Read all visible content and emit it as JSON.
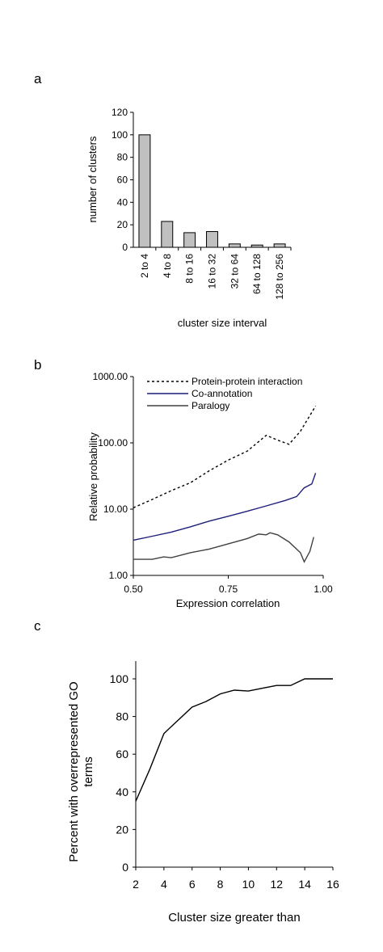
{
  "panels": {
    "a": "a",
    "b": "b",
    "c": "c"
  },
  "chart_data": [
    {
      "type": "bar",
      "panel": "a",
      "categories": [
        "2 to 4",
        "4 to 8",
        "8 to 16",
        "16 to 32",
        "32 to 64",
        "64 to 128",
        "128 to 256"
      ],
      "values": [
        100,
        23,
        13,
        14,
        3,
        2,
        3
      ],
      "yticks": [
        "0",
        "20",
        "40",
        "60",
        "80",
        "100",
        "120"
      ],
      "ylim": [
        0,
        120
      ],
      "xlabel": "cluster size interval",
      "ylabel": "number of clusters",
      "bar_color": "#c0c0c0",
      "grid": false
    },
    {
      "type": "line",
      "panel": "b",
      "xlabel": "Expression correlation",
      "ylabel": "Relative probability",
      "yscale": "log",
      "xlim": [
        0.5,
        1.0
      ],
      "ylim": [
        1,
        1000
      ],
      "xticks": [
        "0.50",
        "0.75",
        "1.00"
      ],
      "yticks": [
        "1.00",
        "10.00",
        "100.00",
        "1000.00"
      ],
      "legend_position": "top",
      "grid": false,
      "series": [
        {
          "name": "Protein-protein interaction",
          "style": "dotted",
          "color": "#000000",
          "x": [
            0.5,
            0.55,
            0.6,
            0.65,
            0.7,
            0.75,
            0.8,
            0.85,
            0.88,
            0.91,
            0.94,
            0.98
          ],
          "y": [
            10.5,
            14,
            19,
            25,
            38,
            55,
            75,
            130,
            110,
            95,
            150,
            360
          ]
        },
        {
          "name": "Co-annotation",
          "style": "solid",
          "color": "#1f1f7a",
          "x": [
            0.5,
            0.55,
            0.6,
            0.65,
            0.7,
            0.75,
            0.8,
            0.85,
            0.9,
            0.93,
            0.95,
            0.97,
            0.98
          ],
          "y": [
            3.4,
            3.9,
            4.5,
            5.4,
            6.6,
            7.8,
            9.3,
            11.2,
            13.5,
            15.5,
            21,
            24,
            35
          ]
        },
        {
          "name": "Paralogy",
          "style": "solid",
          "color": "#404040",
          "x": [
            0.5,
            0.55,
            0.58,
            0.6,
            0.65,
            0.7,
            0.75,
            0.8,
            0.83,
            0.85,
            0.86,
            0.88,
            0.91,
            0.94,
            0.95,
            0.965,
            0.975
          ],
          "y": [
            1.75,
            1.75,
            1.9,
            1.85,
            2.2,
            2.5,
            3.0,
            3.6,
            4.2,
            4.1,
            4.4,
            4.1,
            3.2,
            2.2,
            1.6,
            2.3,
            3.8
          ]
        }
      ]
    },
    {
      "type": "line",
      "panel": "c",
      "xlabel": "Cluster size greater than",
      "ylabel_lines": [
        "Percent with overrepresented GO",
        "terms"
      ],
      "xlim": [
        2,
        16
      ],
      "ylim": [
        0,
        100
      ],
      "xticks": [
        "2",
        "4",
        "6",
        "8",
        "10",
        "12",
        "14",
        "16"
      ],
      "yticks": [
        "0",
        "20",
        "40",
        "60",
        "80",
        "100"
      ],
      "grid": false,
      "series": [
        {
          "style": "solid",
          "color": "#000000",
          "x": [
            2,
            3,
            4,
            5,
            6,
            7,
            8,
            9,
            10,
            11,
            12,
            13,
            14,
            15,
            16
          ],
          "y": [
            35,
            52,
            71,
            78,
            85,
            88,
            92,
            94,
            93.5,
            95,
            96.5,
            96.5,
            100,
            100,
            100
          ]
        }
      ]
    }
  ]
}
